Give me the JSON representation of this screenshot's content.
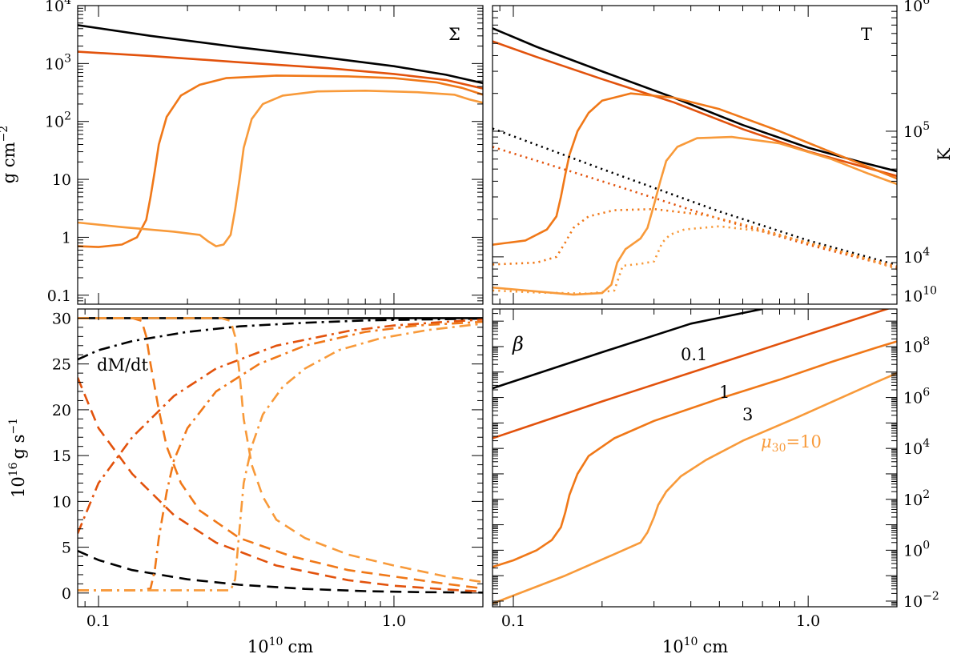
{
  "colors": {
    "mu0.1": "#000000",
    "mu1": "#e2520c",
    "mu3": "#f07818",
    "mu10": "#f89a3a"
  },
  "chart_data": [
    {
      "panel": "surface-density",
      "type": "line",
      "label": "Σ",
      "xscale": "log",
      "xlim": [
        0.085,
        2.0
      ],
      "yscale": "log",
      "ylim": [
        0.07,
        10000
      ],
      "ylabel_left": "g cm",
      "ylabel_left_exp": "−2",
      "yticks_left": [
        {
          "v": 0.1,
          "t": "0.1"
        },
        {
          "v": 1,
          "t": "1"
        },
        {
          "v": 10,
          "t": "10"
        },
        {
          "v": 100,
          "b": "10",
          "e": "2"
        },
        {
          "v": 1000,
          "b": "10",
          "e": "3"
        },
        {
          "v": 10000,
          "b": "10",
          "e": "4"
        }
      ],
      "series": [
        {
          "name": "mu30=0.1",
          "color": "#000000",
          "style": "solid",
          "x": [
            0.085,
            0.15,
            0.3,
            0.6,
            1.0,
            1.5,
            2.0
          ],
          "y": [
            4600,
            3000,
            1900,
            1250,
            900,
            640,
            460
          ]
        },
        {
          "name": "mu30=1",
          "color": "#e2520c",
          "style": "solid",
          "x": [
            0.085,
            0.15,
            0.3,
            0.6,
            1.0,
            1.5,
            2.0
          ],
          "y": [
            1600,
            1350,
            1050,
            830,
            660,
            520,
            370
          ]
        },
        {
          "name": "mu30=3",
          "color": "#f07818",
          "style": "solid",
          "x": [
            0.085,
            0.1,
            0.12,
            0.135,
            0.145,
            0.15,
            0.155,
            0.16,
            0.17,
            0.19,
            0.22,
            0.27,
            0.4,
            0.7,
            1.0,
            1.4,
            1.7,
            2.0
          ],
          "y": [
            0.7,
            0.68,
            0.75,
            1.0,
            2.0,
            5,
            14,
            40,
            120,
            280,
            430,
            560,
            620,
            600,
            560,
            470,
            380,
            290
          ]
        },
        {
          "name": "mu30=10",
          "color": "#f89a3a",
          "style": "solid",
          "x": [
            0.085,
            0.12,
            0.18,
            0.22,
            0.235,
            0.25,
            0.265,
            0.28,
            0.29,
            0.3,
            0.31,
            0.33,
            0.36,
            0.42,
            0.55,
            0.8,
            1.2,
            1.6,
            1.8,
            2.0
          ],
          "y": [
            1.8,
            1.5,
            1.25,
            1.1,
            0.85,
            0.7,
            0.75,
            1.1,
            3,
            10,
            35,
            110,
            200,
            280,
            330,
            340,
            320,
            290,
            240,
            210
          ]
        }
      ]
    },
    {
      "panel": "temperature",
      "type": "line",
      "label": "T",
      "xscale": "log",
      "xlim": [
        0.085,
        2.0
      ],
      "yscale": "log",
      "ylim": [
        4200,
        1000000
      ],
      "ylabel_right": "K",
      "yticks_right": [
        {
          "v": 10000,
          "b": "10",
          "e": "4"
        },
        {
          "v": 100000,
          "b": "10",
          "e": "5"
        },
        {
          "v": 1000000,
          "b": "10",
          "e": "6"
        }
      ],
      "series": [
        {
          "name": "mu30=0.1",
          "color": "#000000",
          "style": "solid",
          "x": [
            0.085,
            0.12,
            0.2,
            0.35,
            0.6,
            1.0,
            1.5,
            2.0
          ],
          "y": [
            660000,
            470000,
            300000,
            185000,
            112000,
            74000,
            57000,
            48000
          ]
        },
        {
          "name": "mu30=1",
          "color": "#e2520c",
          "style": "solid",
          "x": [
            0.085,
            0.12,
            0.2,
            0.35,
            0.6,
            1.0,
            1.5,
            2.0
          ],
          "y": [
            520000,
            390000,
            260000,
            170000,
            104000,
            69000,
            53000,
            44000
          ]
        },
        {
          "name": "mu30=3",
          "color": "#f07818",
          "style": "solid",
          "x": [
            0.085,
            0.11,
            0.13,
            0.14,
            0.145,
            0.15,
            0.155,
            0.165,
            0.18,
            0.2,
            0.25,
            0.35,
            0.5,
            0.8,
            1.2,
            1.6,
            2.0
          ],
          "y": [
            12500,
            13500,
            16500,
            21000,
            30000,
            45000,
            65000,
            100000,
            140000,
            175000,
            200000,
            185000,
            150000,
            100000,
            68000,
            52000,
            42000
          ]
        },
        {
          "name": "mu30=10",
          "color": "#f89a3a",
          "style": "solid",
          "x": [
            0.085,
            0.12,
            0.16,
            0.2,
            0.215,
            0.225,
            0.24,
            0.27,
            0.285,
            0.3,
            0.315,
            0.33,
            0.36,
            0.42,
            0.55,
            0.8,
            1.2,
            1.6,
            2.0
          ],
          "y": [
            5700,
            5300,
            5000,
            5150,
            6000,
            9000,
            11500,
            14000,
            17000,
            26000,
            40000,
            58000,
            75000,
            88000,
            90000,
            80000,
            60000,
            46000,
            38000
          ]
        },
        {
          "name": "mu30=0.1 dotted",
          "color": "#000000",
          "style": "dotted",
          "x": [
            0.085,
            0.2,
            0.5,
            1.0,
            2.0
          ],
          "y": [
            105000,
            50000,
            23000,
            13500,
            8600
          ]
        },
        {
          "name": "mu30=1 dotted",
          "color": "#e2520c",
          "style": "dotted",
          "x": [
            0.085,
            0.2,
            0.5,
            1.0,
            2.0
          ],
          "y": [
            75000,
            40000,
            20000,
            12500,
            8200
          ]
        },
        {
          "name": "mu30=3 dotted",
          "color": "#f07818",
          "style": "dotted",
          "x": [
            0.085,
            0.12,
            0.14,
            0.15,
            0.16,
            0.18,
            0.22,
            0.3,
            0.45,
            0.7,
            1.0,
            1.5,
            2.0
          ],
          "y": [
            8700,
            9000,
            10000,
            13000,
            17000,
            21000,
            23500,
            24000,
            21500,
            16500,
            12800,
            10000,
            8400
          ]
        },
        {
          "name": "mu30=10 dotted",
          "color": "#f89a3a",
          "style": "dotted",
          "x": [
            0.085,
            0.12,
            0.18,
            0.22,
            0.235,
            0.27,
            0.3,
            0.32,
            0.34,
            0.38,
            0.5,
            0.7,
            1.0,
            1.4,
            2.0
          ],
          "y": [
            5400,
            5200,
            5100,
            5400,
            8500,
            8800,
            9200,
            13000,
            15000,
            16500,
            17500,
            16000,
            13000,
            10500,
            8000
          ]
        }
      ]
    },
    {
      "panel": "mass-flow",
      "type": "line",
      "label": "dM/dt",
      "xscale": "log",
      "xlim": [
        0.085,
        2.0
      ],
      "yscale": "linear",
      "ylim": [
        -1.5,
        31
      ],
      "xlabel_base": "10",
      "xlabel_exp": "10",
      "xlabel_unit": "cm",
      "ylabel_left_base": "10",
      "ylabel_left_exp": "16",
      "ylabel_left_unit": "g s",
      "ylabel_left_unit_exp": "−1",
      "xticks": [
        {
          "v": 0.1,
          "t": "0.1"
        },
        {
          "v": 1.0,
          "t": "1.0"
        }
      ],
      "yticks_left": [
        0,
        5,
        10,
        15,
        20,
        25,
        30
      ],
      "series": [
        {
          "name": "mu30=0.1 solid",
          "color": "#000000",
          "style": "solid",
          "x": [
            0.085,
            2.0
          ],
          "y": [
            30,
            30
          ]
        },
        {
          "name": "mu30=0.1 dashdot",
          "color": "#000000",
          "style": "dashdot",
          "x": [
            0.085,
            0.1,
            0.13,
            0.2,
            0.3,
            0.5,
            0.8,
            1.2,
            2.0
          ],
          "y": [
            25.5,
            26.5,
            27.5,
            28.5,
            29.1,
            29.5,
            29.75,
            29.85,
            29.95
          ]
        },
        {
          "name": "mu30=0.1 dashed",
          "color": "#000000",
          "style": "dashed",
          "x": [
            0.085,
            0.1,
            0.13,
            0.2,
            0.3,
            0.5,
            0.8,
            1.2,
            2.0
          ],
          "y": [
            4.6,
            3.6,
            2.5,
            1.5,
            0.9,
            0.45,
            0.2,
            0.1,
            0.05
          ]
        },
        {
          "name": "mu30=1 dashdot",
          "color": "#e2520c",
          "style": "dashdot",
          "x": [
            0.085,
            0.1,
            0.13,
            0.18,
            0.25,
            0.4,
            0.7,
            1.0,
            1.5,
            2.0
          ],
          "y": [
            6.5,
            12,
            17,
            21.5,
            24.5,
            27,
            28.6,
            29.2,
            29.6,
            29.85
          ]
        },
        {
          "name": "mu30=1 dashed",
          "color": "#e2520c",
          "style": "dashed",
          "x": [
            0.085,
            0.1,
            0.13,
            0.18,
            0.25,
            0.4,
            0.7,
            1.0,
            1.5,
            2.0
          ],
          "y": [
            23.5,
            18,
            13,
            8.5,
            5.5,
            3,
            1.4,
            0.8,
            0.4,
            0.15
          ]
        },
        {
          "name": "mu30=3 dashdot",
          "color": "#f07818",
          "style": "dashdot",
          "x": [
            0.085,
            0.14,
            0.15,
            0.155,
            0.16,
            0.17,
            0.18,
            0.2,
            0.25,
            0.35,
            0.5,
            0.8,
            1.2,
            2.0
          ],
          "y": [
            0.3,
            0.3,
            0.5,
            2.5,
            6,
            11,
            14.5,
            18,
            22,
            25,
            27,
            28.5,
            29.2,
            29.6
          ]
        },
        {
          "name": "mu30=3 dashed",
          "color": "#f07818",
          "style": "dashed",
          "x": [
            0.085,
            0.13,
            0.14,
            0.145,
            0.15,
            0.16,
            0.17,
            0.19,
            0.22,
            0.3,
            0.45,
            0.7,
            1.0,
            1.5,
            2.0
          ],
          "y": [
            30,
            30,
            29.7,
            28,
            25,
            20,
            16,
            12,
            9,
            6,
            4,
            2.5,
            1.8,
            1.0,
            0.5
          ]
        },
        {
          "name": "mu30=10 dashdot",
          "color": "#f89a3a",
          "style": "dashdot",
          "x": [
            0.085,
            0.28,
            0.29,
            0.3,
            0.31,
            0.33,
            0.36,
            0.42,
            0.5,
            0.65,
            0.9,
            1.3,
            2.0
          ],
          "y": [
            0.3,
            0.3,
            1.5,
            7,
            12,
            16,
            19.5,
            22.5,
            24.5,
            26.5,
            27.8,
            28.7,
            29.4
          ]
        },
        {
          "name": "mu30=10 dashed",
          "color": "#f89a3a",
          "style": "dashed",
          "x": [
            0.085,
            0.26,
            0.28,
            0.29,
            0.3,
            0.31,
            0.33,
            0.36,
            0.4,
            0.5,
            0.7,
            1.0,
            1.5,
            2.0
          ],
          "y": [
            30,
            30,
            29.7,
            28,
            24,
            19,
            14,
            10.5,
            8,
            6,
            4.2,
            3,
            1.8,
            1.2
          ]
        }
      ]
    },
    {
      "panel": "beta",
      "type": "line",
      "label": "β",
      "xscale": "log",
      "xlim": [
        0.085,
        2.0
      ],
      "yscale": "log",
      "ylim": [
        0.006,
        3000000000
      ],
      "xlabel_base": "10",
      "xlabel_exp": "10",
      "xlabel_unit": "cm",
      "xticks": [
        {
          "v": 0.1,
          "t": "0.1"
        },
        {
          "v": 1.0,
          "t": "1.0"
        }
      ],
      "yticks_right": [
        {
          "v": 0.01,
          "b": "10",
          "e": "−2"
        },
        {
          "v": 1,
          "b": "10",
          "e": "0"
        },
        {
          "v": 100,
          "b": "10",
          "e": "2"
        },
        {
          "v": 10000,
          "b": "10",
          "e": "4"
        },
        {
          "v": 1000000,
          "b": "10",
          "e": "6"
        },
        {
          "v": 100000000,
          "b": "10",
          "e": "8"
        },
        {
          "v": 10000000000,
          "b": "10",
          "e": "10"
        }
      ],
      "annotations": [
        {
          "text": "0.1",
          "color": "#000000"
        },
        {
          "text": "1",
          "color": "#e2520c"
        },
        {
          "text": "3",
          "color": "#f07818"
        },
        {
          "text_mu": "μ",
          "text_sub": "30",
          "text_val": "=10",
          "color": "#f89a3a"
        }
      ],
      "series": [
        {
          "name": "mu30=0.1",
          "color": "#000000",
          "style": "solid",
          "x": [
            0.085,
            0.2,
            0.4,
            0.7
          ],
          "y": [
            2300000,
            60000000,
            800000000,
            3000000000
          ]
        },
        {
          "name": "mu30=1",
          "color": "#e2520c",
          "style": "solid",
          "x": [
            0.085,
            0.2,
            0.5,
            1.0,
            2.0
          ],
          "y": [
            25000,
            700000,
            22000000,
            300000000,
            4000000000
          ]
        },
        {
          "name": "mu30=3",
          "color": "#f07818",
          "style": "solid",
          "x": [
            0.085,
            0.1,
            0.12,
            0.135,
            0.145,
            0.15,
            0.155,
            0.165,
            0.18,
            0.22,
            0.3,
            0.5,
            0.8,
            1.2,
            1.7,
            2.0
          ],
          "y": [
            0.22,
            0.4,
            1.0,
            2.5,
            8,
            30,
            150,
            1000,
            5000,
            25000,
            120000,
            900000,
            5000000,
            25000000,
            90000000,
            160000000
          ]
        },
        {
          "name": "mu30=10",
          "color": "#f89a3a",
          "style": "solid",
          "x": [
            0.085,
            0.15,
            0.22,
            0.27,
            0.285,
            0.3,
            0.31,
            0.33,
            0.37,
            0.45,
            0.6,
            0.9,
            1.3,
            1.7,
            2.0
          ],
          "y": [
            0.008,
            0.1,
            0.7,
            2,
            5,
            20,
            60,
            200,
            800,
            3500,
            20000,
            150000,
            1000000,
            4000000,
            9000000
          ]
        }
      ]
    }
  ]
}
